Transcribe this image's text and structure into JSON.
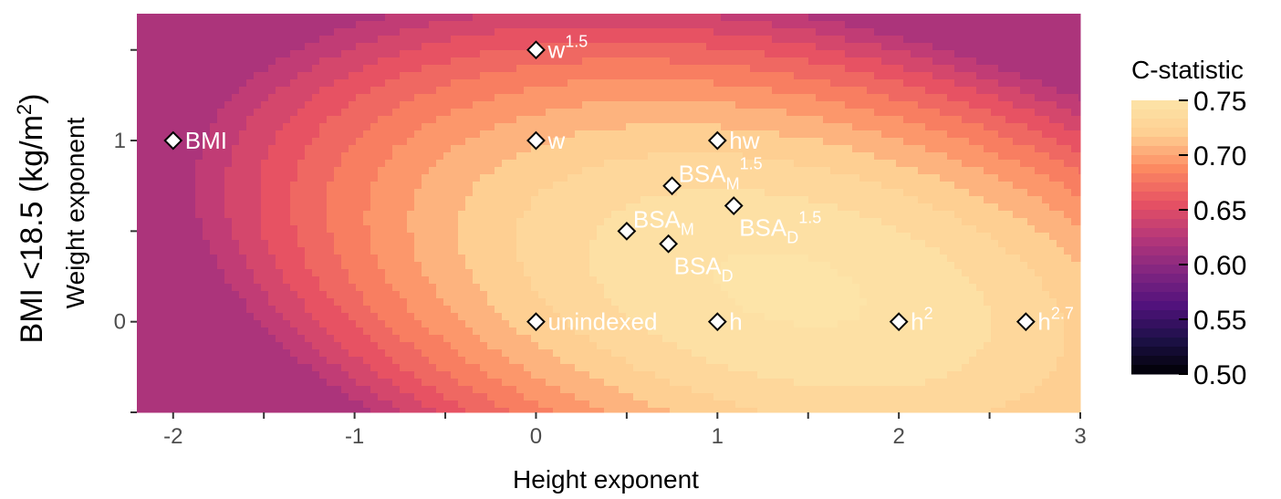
{
  "chart_data": {
    "type": "heatmap",
    "facet_title": "BMI <18.5 (kg/m2)",
    "facet_title_parts": {
      "main": "BMI <18.5 (kg/m",
      "sup": "2",
      "end": ")"
    },
    "xlabel": "Height exponent",
    "ylabel": "Weight exponent",
    "xlim": [
      -2.2,
      3.0
    ],
    "ylim": [
      -0.5,
      1.7
    ],
    "x_ticks": [
      -2,
      -1,
      0,
      1,
      2,
      3
    ],
    "x_tick_labels": [
      "-2",
      "-1",
      "0",
      "1",
      "2",
      "3"
    ],
    "y_ticks": [
      0,
      1
    ],
    "y_tick_labels": [
      "0",
      "1"
    ],
    "grid": false,
    "legend": {
      "title": "C-statistic",
      "position": "right",
      "range": [
        0.5,
        0.75
      ],
      "ticks": [
        {
          "value": 0.75,
          "label": "0.75"
        },
        {
          "value": 0.7,
          "label": "0.70"
        },
        {
          "value": 0.65,
          "label": "0.65"
        },
        {
          "value": 0.6,
          "label": "0.60"
        },
        {
          "value": 0.55,
          "label": "0.55"
        },
        {
          "value": 0.5,
          "label": "0.50"
        }
      ]
    },
    "colormap": [
      "#000004",
      "#1d1147",
      "#51127c",
      "#822681",
      "#b73779",
      "#e75263",
      "#fc8961",
      "#fecf92",
      "#fde4a8"
    ],
    "points": [
      {
        "x": -2,
        "y": 1,
        "label": "BMI",
        "sub": "",
        "sup": "",
        "label_pos": "right"
      },
      {
        "x": 0,
        "y": 1.5,
        "label": "w",
        "sub": "",
        "sup": "1.5",
        "label_pos": "right"
      },
      {
        "x": 0,
        "y": 1,
        "label": "w",
        "sub": "",
        "sup": "",
        "label_pos": "right"
      },
      {
        "x": 1,
        "y": 1,
        "label": "hw",
        "sub": "",
        "sup": "",
        "label_pos": "right"
      },
      {
        "x": 0.75,
        "y": 0.75,
        "label": "BSA",
        "sub": "M",
        "sup": "1.5",
        "label_pos": "upright"
      },
      {
        "x": 1.09,
        "y": 0.64,
        "label": "BSA",
        "sub": "D",
        "sup": "1.5",
        "label_pos": "downright"
      },
      {
        "x": 0.5,
        "y": 0.5,
        "label": "BSA",
        "sub": "M",
        "sup": "",
        "label_pos": "upright"
      },
      {
        "x": 0.73,
        "y": 0.43,
        "label": "BSA",
        "sub": "D",
        "sup": "",
        "label_pos": "downright"
      },
      {
        "x": 0,
        "y": 0,
        "label": "unindexed",
        "sub": "",
        "sup": "",
        "label_pos": "right"
      },
      {
        "x": 1,
        "y": 0,
        "label": "h",
        "sub": "",
        "sup": "",
        "label_pos": "right"
      },
      {
        "x": 2,
        "y": 0,
        "label": "h",
        "sub": "",
        "sup": "2",
        "label_pos": "right"
      },
      {
        "x": 2.7,
        "y": 0,
        "label": "h",
        "sub": "",
        "sup": "2.7",
        "label_pos": "right"
      }
    ]
  }
}
